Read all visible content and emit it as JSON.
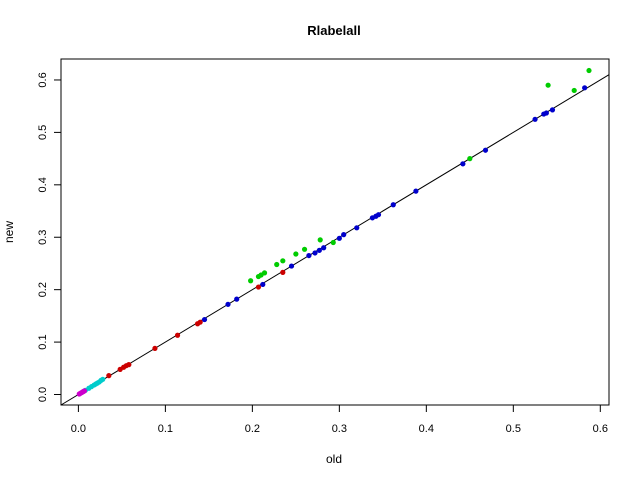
{
  "chart_data": {
    "type": "scatter",
    "title": "Rlabelall",
    "xlabel": "old",
    "ylabel": "new",
    "xlim": [
      -0.02,
      0.61
    ],
    "ylim": [
      -0.02,
      0.64
    ],
    "xticks": [
      0.0,
      0.1,
      0.2,
      0.3,
      0.4,
      0.5,
      0.6
    ],
    "yticks": [
      0.0,
      0.1,
      0.2,
      0.3,
      0.4,
      0.5,
      0.6
    ],
    "xtick_labels": [
      "0.0",
      "0.1",
      "0.2",
      "0.3",
      "0.4",
      "0.5",
      "0.6"
    ],
    "ytick_labels": [
      "0.0",
      "0.1",
      "0.2",
      "0.3",
      "0.4",
      "0.5",
      "0.6"
    ],
    "reference_line": {
      "intercept": 0,
      "slope": 1
    },
    "grid": false,
    "series": [
      {
        "color": "#0000cc",
        "x": [
          0.145,
          0.172,
          0.182,
          0.212,
          0.245,
          0.265,
          0.272,
          0.277,
          0.282,
          0.3,
          0.305,
          0.32,
          0.338,
          0.342,
          0.345,
          0.362,
          0.388,
          0.442,
          0.468,
          0.525,
          0.535,
          0.538,
          0.545,
          0.582
        ],
        "y": [
          0.143,
          0.172,
          0.182,
          0.21,
          0.245,
          0.265,
          0.27,
          0.275,
          0.28,
          0.298,
          0.305,
          0.318,
          0.337,
          0.34,
          0.343,
          0.362,
          0.388,
          0.44,
          0.466,
          0.525,
          0.535,
          0.537,
          0.543,
          0.585
        ]
      },
      {
        "color": "#00cc00",
        "x": [
          0.198,
          0.207,
          0.21,
          0.214,
          0.228,
          0.235,
          0.25,
          0.26,
          0.278,
          0.293,
          0.45,
          0.54,
          0.57,
          0.587
        ],
        "y": [
          0.217,
          0.225,
          0.228,
          0.232,
          0.248,
          0.255,
          0.268,
          0.277,
          0.295,
          0.29,
          0.45,
          0.59,
          0.58,
          0.618
        ]
      },
      {
        "color": "#cc0000",
        "x": [
          0.035,
          0.048,
          0.052,
          0.055,
          0.058,
          0.088,
          0.114,
          0.137,
          0.14,
          0.207,
          0.235
        ],
        "y": [
          0.036,
          0.048,
          0.052,
          0.055,
          0.057,
          0.088,
          0.113,
          0.135,
          0.138,
          0.205,
          0.233
        ]
      },
      {
        "color": "#00cccc",
        "x": [
          0.008,
          0.012,
          0.015,
          0.018,
          0.02,
          0.022,
          0.024,
          0.026,
          0.028
        ],
        "y": [
          0.008,
          0.012,
          0.015,
          0.018,
          0.02,
          0.022,
          0.024,
          0.027,
          0.029
        ]
      },
      {
        "color": "#cc00cc",
        "x": [
          0.001,
          0.002,
          0.003,
          0.004,
          0.005,
          0.006,
          0.007
        ],
        "y": [
          0.001,
          0.002,
          0.003,
          0.004,
          0.005,
          0.006,
          0.007
        ]
      }
    ]
  }
}
